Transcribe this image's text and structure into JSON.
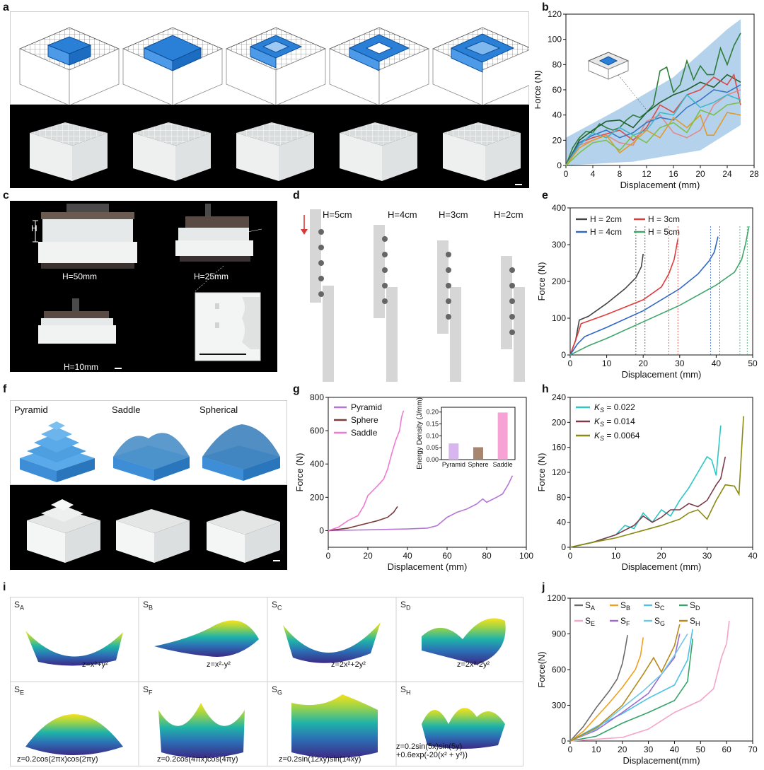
{
  "panel_letters": [
    "a",
    "b",
    "c",
    "d",
    "e",
    "f",
    "g",
    "h",
    "i",
    "j"
  ],
  "panel_c": {
    "labels": [
      "H",
      "H=50mm",
      "H=25mm",
      "H=10mm"
    ]
  },
  "panel_d": {
    "labels": [
      "H=5cm",
      "H=4cm",
      "H=3cm",
      "H=2cm"
    ]
  },
  "panel_f": {
    "labels": [
      "Pyramid",
      "Saddle",
      "Spherical"
    ]
  },
  "panel_i": {
    "surfaces": [
      {
        "name": "S_A",
        "base": "S",
        "sub": "A",
        "eq": "z=x²+y²"
      },
      {
        "name": "S_B",
        "base": "S",
        "sub": "B",
        "eq": "z=x²-y²"
      },
      {
        "name": "S_C",
        "base": "S",
        "sub": "C",
        "eq": "z=2x²+2y²"
      },
      {
        "name": "S_D",
        "base": "S",
        "sub": "D",
        "eq": "z=2x²-2y²"
      },
      {
        "name": "S_E",
        "base": "S",
        "sub": "E",
        "eq": "z=0.2cos(2πx)cos(2πy)"
      },
      {
        "name": "S_F",
        "base": "S",
        "sub": "F",
        "eq": "z=0.2cos(4πx)cos(4πy)"
      },
      {
        "name": "S_G",
        "base": "S",
        "sub": "G",
        "eq": "z=0.2sin(12xy)sin(14xy)"
      },
      {
        "name": "S_H",
        "base": "S",
        "sub": "H",
        "eq": "z=0.2sin(5x)sin(5y)",
        "eq2": "+0.6exp(-20(x² + y²))"
      }
    ]
  },
  "chart_data": [
    {
      "id": "b",
      "type": "line",
      "xlabel": "Displacement (mm)",
      "ylabel": "Force (N)",
      "xlim": [
        0,
        28
      ],
      "ylim": [
        0,
        120
      ],
      "xticks": [
        0,
        4,
        8,
        12,
        16,
        20,
        24,
        28
      ],
      "yticks": [
        0,
        20,
        40,
        60,
        80,
        100,
        120
      ],
      "envelope": {
        "color": "#9cc3e6",
        "upper": [
          [
            0,
            22
          ],
          [
            8,
            45
          ],
          [
            16,
            70
          ],
          [
            24,
            108
          ],
          [
            26,
            116
          ]
        ],
        "lower": [
          [
            0,
            0
          ],
          [
            10,
            3
          ],
          [
            20,
            12
          ],
          [
            26,
            32
          ]
        ]
      },
      "series": [
        {
          "name": "green",
          "color": "#2e7d3a",
          "x": [
            0,
            1,
            2,
            3,
            4,
            5,
            6,
            7,
            8,
            9,
            10,
            11,
            12,
            13,
            14,
            15,
            16,
            17,
            18,
            19,
            20,
            21,
            22,
            23,
            24,
            25,
            26
          ],
          "y": [
            0,
            14,
            22,
            27,
            26,
            33,
            30,
            28,
            30,
            36,
            40,
            38,
            42,
            48,
            75,
            78,
            58,
            64,
            83,
            68,
            79,
            72,
            72,
            93,
            80,
            95,
            105
          ]
        },
        {
          "name": "darkgreen",
          "color": "#1f5e2e",
          "x": [
            0,
            2,
            4,
            6,
            8,
            10,
            12,
            14,
            16,
            18,
            20,
            22,
            24,
            26
          ],
          "y": [
            0,
            20,
            28,
            35,
            36,
            30,
            42,
            50,
            56,
            60,
            66,
            62,
            72,
            66
          ]
        },
        {
          "name": "red",
          "color": "#d84a4a",
          "x": [
            0,
            2,
            4,
            6,
            8,
            10,
            12,
            14,
            16,
            18,
            20,
            22,
            24,
            25,
            26
          ],
          "y": [
            0,
            18,
            22,
            25,
            28,
            20,
            30,
            48,
            42,
            56,
            60,
            70,
            64,
            72,
            48
          ]
        },
        {
          "name": "pink",
          "color": "#e08a8a",
          "x": [
            0,
            2,
            4,
            6,
            8,
            10,
            12,
            14,
            16,
            18,
            20,
            22,
            24,
            26
          ],
          "y": [
            0,
            16,
            20,
            24,
            18,
            16,
            35,
            40,
            26,
            22,
            28,
            48,
            56,
            60
          ]
        },
        {
          "name": "blue",
          "color": "#3a77c2",
          "x": [
            0,
            2,
            4,
            6,
            8,
            10,
            12,
            14,
            16,
            18,
            20,
            22,
            24,
            26
          ],
          "y": [
            0,
            18,
            24,
            28,
            22,
            26,
            34,
            38,
            36,
            46,
            52,
            60,
            58,
            64
          ]
        },
        {
          "name": "cyan",
          "color": "#3fb6c9",
          "x": [
            0,
            2,
            4,
            6,
            8,
            10,
            12,
            14,
            16,
            18,
            20,
            22,
            24,
            26
          ],
          "y": [
            0,
            16,
            26,
            22,
            30,
            24,
            28,
            42,
            40,
            56,
            46,
            50,
            56,
            52
          ]
        },
        {
          "name": "orange",
          "color": "#e29a2a",
          "x": [
            0,
            2,
            4,
            6,
            8,
            10,
            12,
            14,
            16,
            18,
            20,
            21,
            22,
            24,
            26
          ],
          "y": [
            0,
            14,
            20,
            24,
            10,
            18,
            28,
            22,
            38,
            30,
            40,
            24,
            24,
            42,
            40
          ]
        },
        {
          "name": "lime",
          "color": "#7bbf4a",
          "x": [
            0,
            2,
            4,
            6,
            8,
            10,
            12,
            14,
            16,
            18,
            20,
            22,
            24,
            26
          ],
          "y": [
            0,
            10,
            18,
            20,
            12,
            24,
            18,
            30,
            34,
            26,
            44,
            40,
            48,
            50
          ]
        }
      ]
    },
    {
      "id": "e",
      "type": "line",
      "xlabel": "Displacement (mm)",
      "ylabel": "Force (N)",
      "xlim": [
        0,
        50
      ],
      "ylim": [
        0,
        400
      ],
      "xticks": [
        0,
        10,
        20,
        30,
        40,
        50
      ],
      "yticks": [
        0,
        100,
        200,
        300,
        400
      ],
      "legend": "top-left",
      "series": [
        {
          "name": "H = 2cm",
          "color": "#444444",
          "x": [
            0,
            1.5,
            2.5,
            5,
            10,
            15,
            18,
            19.5,
            20
          ],
          "y": [
            0,
            40,
            95,
            105,
            140,
            180,
            210,
            240,
            275
          ]
        },
        {
          "name": "H = 3cm",
          "color": "#e03c3c",
          "x": [
            0,
            1.5,
            3,
            10,
            20,
            25,
            27,
            28.5,
            29.5
          ],
          "y": [
            0,
            40,
            85,
            110,
            150,
            185,
            220,
            260,
            315
          ]
        },
        {
          "name": "H = 4cm",
          "color": "#2e67c6",
          "x": [
            0,
            2,
            4,
            10,
            20,
            30,
            35,
            38,
            39.5,
            40.5
          ],
          "y": [
            0,
            30,
            50,
            75,
            120,
            180,
            220,
            255,
            280,
            322
          ]
        },
        {
          "name": "H = 5cm",
          "color": "#3fa66a",
          "x": [
            0,
            3,
            5,
            10,
            20,
            30,
            40,
            45,
            47,
            48,
            49
          ],
          "y": [
            0,
            15,
            25,
            45,
            90,
            135,
            190,
            225,
            260,
            300,
            350
          ]
        }
      ],
      "dashed_x": [
        18,
        20.5,
        27,
        29.5,
        38.5,
        41,
        46.5,
        48.5
      ]
    },
    {
      "id": "g",
      "type": "line",
      "xlabel": "Displacement (mm)",
      "ylabel": "Force (N)",
      "xlim": [
        0,
        100
      ],
      "ylim": [
        -100,
        800
      ],
      "xticks": [
        0,
        20,
        40,
        60,
        80,
        100
      ],
      "yticks": [
        0,
        200,
        400,
        600,
        800
      ],
      "legend": "top-left",
      "series": [
        {
          "name": "Pyramid",
          "color": "#b476d6",
          "x": [
            0,
            20,
            40,
            50,
            55,
            60,
            65,
            70,
            75,
            78,
            80,
            85,
            88,
            91,
            93
          ],
          "y": [
            0,
            5,
            10,
            15,
            30,
            80,
            110,
            130,
            160,
            190,
            170,
            200,
            220,
            280,
            330
          ]
        },
        {
          "name": "Sphere",
          "color": "#7a3b3b",
          "x": [
            0,
            10,
            15,
            20,
            25,
            30,
            33,
            35
          ],
          "y": [
            0,
            15,
            30,
            45,
            60,
            80,
            110,
            145
          ]
        },
        {
          "name": "Saddle",
          "color": "#f07ad0",
          "x": [
            0,
            5,
            10,
            15,
            18,
            20,
            25,
            28,
            30,
            32,
            34,
            36,
            37,
            38
          ],
          "y": [
            0,
            20,
            60,
            90,
            150,
            210,
            270,
            310,
            370,
            460,
            540,
            600,
            680,
            720
          ]
        }
      ],
      "inset": {
        "type": "bar",
        "ylabel": "Energy Density (J/mm)",
        "categories": [
          "Pyramid",
          "Sphere",
          "Saddle"
        ],
        "values": [
          0.068,
          0.052,
          0.198
        ],
        "colors": [
          "#d7b6ef",
          "#a8856f",
          "#f6a2d4"
        ],
        "ylim": [
          0,
          0.22
        ],
        "yticks": [
          0.0,
          0.05,
          0.1,
          0.15,
          0.2
        ]
      }
    },
    {
      "id": "h",
      "type": "line",
      "xlabel": "Displacement (mm)",
      "ylabel": "Force (N)",
      "xlim": [
        0,
        40
      ],
      "ylim": [
        0,
        240
      ],
      "xticks": [
        0,
        10,
        20,
        30,
        40
      ],
      "yticks": [
        0,
        40,
        80,
        120,
        160,
        200,
        240
      ],
      "legend": "top-left",
      "series": [
        {
          "name": "Ks = 0.022",
          "prefix": "K",
          "sub": "S",
          "val": " = 0.022",
          "color": "#2fc6c6",
          "x": [
            0,
            5,
            10,
            12,
            14,
            16,
            18,
            20,
            22,
            24,
            26,
            28,
            30,
            31,
            32,
            33
          ],
          "y": [
            0,
            8,
            20,
            35,
            30,
            55,
            40,
            60,
            50,
            75,
            95,
            120,
            145,
            140,
            115,
            195
          ]
        },
        {
          "name": "Ks = 0.014",
          "prefix": "K",
          "sub": "S",
          "val": " = 0.014",
          "color": "#7b3b4b",
          "x": [
            0,
            5,
            10,
            14,
            16,
            18,
            20,
            22,
            24,
            26,
            28,
            30,
            32,
            33,
            34
          ],
          "y": [
            0,
            8,
            20,
            35,
            50,
            40,
            48,
            60,
            60,
            70,
            65,
            75,
            100,
            110,
            145
          ]
        },
        {
          "name": "Ks = 0.0064",
          "prefix": "K",
          "sub": "S",
          "val": " = 0.0064",
          "color": "#8a8a10",
          "x": [
            0,
            5,
            10,
            15,
            20,
            22,
            24,
            26,
            28,
            30,
            32,
            34,
            36,
            37,
            38
          ],
          "y": [
            0,
            8,
            15,
            25,
            35,
            40,
            45,
            55,
            60,
            45,
            75,
            100,
            98,
            85,
            210
          ]
        }
      ]
    },
    {
      "id": "j",
      "type": "line",
      "xlabel": "Displacement(mm)",
      "ylabel": "Force(N)",
      "xlim": [
        0,
        70
      ],
      "ylim": [
        0,
        1200
      ],
      "xticks": [
        0,
        10,
        20,
        30,
        40,
        50,
        60,
        70
      ],
      "yticks": [
        0,
        300,
        600,
        900,
        1200
      ],
      "legend": "top",
      "series": [
        {
          "name": "S_A",
          "sub": "A",
          "color": "#6b6b6b",
          "x": [
            0,
            5,
            10,
            15,
            18,
            20,
            21,
            22
          ],
          "y": [
            0,
            120,
            280,
            420,
            520,
            650,
            760,
            890
          ]
        },
        {
          "name": "S_B",
          "sub": "B",
          "color": "#f0a020",
          "x": [
            0,
            5,
            10,
            15,
            20,
            25,
            27,
            28
          ],
          "y": [
            0,
            80,
            200,
            320,
            450,
            600,
            720,
            870
          ]
        },
        {
          "name": "S_C",
          "sub": "C",
          "color": "#4ec1e6",
          "x": [
            0,
            10,
            20,
            30,
            40,
            45,
            47
          ],
          "y": [
            0,
            120,
            230,
            360,
            470,
            680,
            940
          ]
        },
        {
          "name": "S_D",
          "sub": "D",
          "color": "#35a46a",
          "x": [
            0,
            10,
            20,
            30,
            40,
            45,
            47
          ],
          "y": [
            0,
            40,
            150,
            240,
            340,
            500,
            860
          ]
        },
        {
          "name": "S_E",
          "sub": "E",
          "color": "#f2a6c8",
          "x": [
            0,
            20,
            30,
            40,
            50,
            55,
            58,
            60,
            61
          ],
          "y": [
            0,
            30,
            100,
            240,
            340,
            440,
            700,
            820,
            1010
          ]
        },
        {
          "name": "S_F",
          "sub": "F",
          "color": "#9b6ad1",
          "x": [
            0,
            10,
            20,
            30,
            35,
            40,
            42
          ],
          "y": [
            0,
            90,
            240,
            400,
            560,
            700,
            900
          ]
        },
        {
          "name": "S_G",
          "sub": "G",
          "color": "#6ec6e8",
          "x": [
            0,
            10,
            20,
            28,
            35,
            40,
            45
          ],
          "y": [
            0,
            100,
            280,
            420,
            560,
            720,
            900
          ]
        },
        {
          "name": "S_H",
          "sub": "H",
          "color": "#b58a1a",
          "x": [
            0,
            10,
            20,
            28,
            32,
            35,
            40,
            42
          ],
          "y": [
            0,
            110,
            300,
            560,
            700,
            580,
            800,
            980
          ]
        }
      ]
    }
  ]
}
